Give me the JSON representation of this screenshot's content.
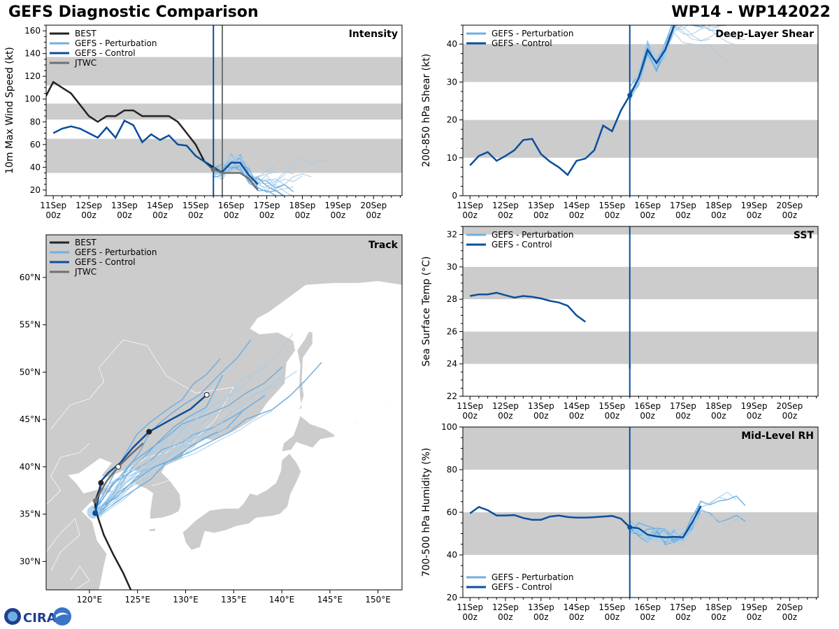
{
  "title_left": "GEFS Diagnostic Comparison",
  "title_right": "WP14 - WP142022",
  "logo_text": "CIRA",
  "colors": {
    "best": "#222222",
    "pert": "#6fafe0",
    "pert_thin": "#a8cde8",
    "control": "#0b4f9c",
    "jtwc": "#707070",
    "band": "#cccccc",
    "land": "#cccccc"
  },
  "time_ticks": [
    {
      "day": "11Sep",
      "hour": "00z"
    },
    {
      "day": "12Sep",
      "hour": "00z"
    },
    {
      "day": "13Sep",
      "hour": "00z"
    },
    {
      "day": "14Sep",
      "hour": "00z"
    },
    {
      "day": "15Sep",
      "hour": "00z"
    },
    {
      "day": "16Sep",
      "hour": "00z"
    },
    {
      "day": "17Sep",
      "hour": "00z"
    },
    {
      "day": "18Sep",
      "hour": "00z"
    },
    {
      "day": "19Sep",
      "hour": "00z"
    },
    {
      "day": "20Sep",
      "hour": "00z"
    }
  ],
  "legends": {
    "intensity": [
      "BEST",
      "GEFS - Perturbation",
      "GEFS - Control",
      "JTWC"
    ],
    "track": [
      "BEST",
      "GEFS - Perturbation",
      "GEFS - Control",
      "JTWC"
    ],
    "env": [
      "GEFS - Perturbation",
      "GEFS - Control"
    ]
  },
  "chart_data": [
    {
      "id": "intensity",
      "type": "line",
      "title": "Intensity",
      "ylabel": "10m Max Wind Speed (kt)",
      "xlim": [
        -0.2,
        9.8
      ],
      "ylim": [
        15,
        165
      ],
      "yticks": [
        20,
        40,
        60,
        80,
        100,
        120,
        140,
        160
      ],
      "bands": [
        [
          35,
          65
        ],
        [
          82,
          96
        ],
        [
          112,
          137
        ]
      ],
      "init_time": 4.5,
      "jtwc_time": 4.75,
      "series": [
        {
          "name": "BEST",
          "x": [
            -0.25,
            0,
            0.25,
            0.5,
            0.75,
            1,
            1.25,
            1.5,
            1.75,
            2,
            2.25,
            2.5,
            2.75,
            3,
            3.25,
            3.5,
            3.75,
            4,
            4.25,
            4.5,
            4.75
          ],
          "y": [
            100,
            115,
            110,
            105,
            95,
            85,
            80,
            85,
            85,
            90,
            90,
            85,
            85,
            85,
            85,
            80,
            70,
            60,
            45,
            40,
            35
          ]
        },
        {
          "name": "GEFS - Control",
          "x": [
            0,
            0.25,
            0.5,
            0.75,
            1,
            1.25,
            1.5,
            1.75,
            2,
            2.25,
            2.5,
            2.75,
            3,
            3.25,
            3.5,
            3.75,
            4,
            4.25,
            4.5,
            4.75,
            5,
            5.25,
            5.5,
            5.75
          ],
          "y": [
            70,
            74,
            76,
            74,
            70,
            66,
            75,
            66,
            81,
            77,
            62,
            69,
            64,
            68,
            60,
            59,
            50,
            45,
            38,
            36,
            44,
            44,
            33,
            25
          ]
        },
        {
          "name": "JTWC",
          "x": [
            4.5,
            4.75,
            5,
            5.25,
            5.5,
            5.75
          ],
          "y": [
            38,
            35,
            35,
            35,
            30,
            20
          ]
        }
      ]
    },
    {
      "id": "shear",
      "type": "line",
      "title": "Deep-Layer Shear",
      "ylabel": "200-850 hPa Shear (kt)",
      "xlim": [
        -0.2,
        9.8
      ],
      "ylim": [
        0,
        45
      ],
      "yticks": [
        0,
        10,
        20,
        30,
        40
      ],
      "bands": [
        [
          10,
          20
        ],
        [
          30,
          40
        ]
      ],
      "init_time": 4.5,
      "series": [
        {
          "name": "GEFS - Control",
          "x": [
            0,
            0.25,
            0.5,
            0.75,
            1,
            1.25,
            1.5,
            1.75,
            2,
            2.25,
            2.5,
            2.75,
            3,
            3.25,
            3.5,
            3.75,
            4,
            4.25,
            4.5,
            4.75,
            5,
            5.25,
            5.5,
            5.75
          ],
          "y": [
            8,
            10.5,
            11.5,
            9.2,
            10.5,
            12,
            14.7,
            15,
            11,
            9,
            7.5,
            5.5,
            9.2,
            9.8,
            12,
            18.5,
            17,
            22.5,
            26.5,
            31,
            38.5,
            35,
            38.5,
            45
          ]
        }
      ]
    },
    {
      "id": "sst",
      "type": "line",
      "title": "SST",
      "ylabel": "Sea Surface Temp (°C)",
      "xlim": [
        -0.2,
        9.8
      ],
      "ylim": [
        22,
        32.5
      ],
      "yticks": [
        22,
        24,
        26,
        28,
        30,
        32
      ],
      "bands": [
        [
          24,
          26
        ],
        [
          28,
          30
        ],
        [
          32,
          34
        ]
      ],
      "init_time": 4.5,
      "series": [
        {
          "name": "GEFS - Control",
          "x": [
            0,
            0.25,
            0.5,
            0.75,
            1,
            1.25,
            1.5,
            1.75,
            2,
            2.25,
            2.5,
            2.75,
            3,
            3.25
          ],
          "y": [
            28.2,
            28.3,
            28.3,
            28.4,
            28.25,
            28.1,
            28.2,
            28.15,
            28.05,
            27.9,
            27.8,
            27.6,
            27.0,
            26.6
          ]
        }
      ]
    },
    {
      "id": "rh",
      "type": "line",
      "title": "Mid-Level RH",
      "ylabel": "700-500 hPa Humidity (%)",
      "xlim": [
        -0.2,
        9.8
      ],
      "ylim": [
        20,
        100
      ],
      "yticks": [
        20,
        40,
        60,
        80,
        100
      ],
      "bands": [
        [
          40,
          60
        ],
        [
          80,
          100
        ]
      ],
      "init_time": 4.5,
      "series": [
        {
          "name": "GEFS - Control",
          "x": [
            0,
            0.25,
            0.5,
            0.75,
            1,
            1.25,
            1.5,
            1.75,
            2,
            2.25,
            2.5,
            2.75,
            3,
            3.25,
            3.5,
            3.75,
            4,
            4.25,
            4.5,
            4.75,
            5,
            5.25,
            5.5,
            5.75,
            6,
            6.25,
            6.5
          ],
          "y": [
            59.5,
            62.5,
            61,
            58.5,
            58.5,
            58.7,
            57.3,
            56.5,
            56.5,
            58,
            58.5,
            57.8,
            57.5,
            57.5,
            57.7,
            58,
            58.3,
            57,
            53,
            52.5,
            49.5,
            48.7,
            48.3,
            48.5,
            48.3,
            55,
            63
          ]
        }
      ]
    },
    {
      "id": "track",
      "type": "scatter",
      "title": "Track",
      "xlim": [
        115.5,
        152.5
      ],
      "ylim": [
        27,
        64.5
      ],
      "xticks": [
        "120°E",
        "125°E",
        "130°E",
        "135°E",
        "140°E",
        "145°E",
        "150°E"
      ],
      "yticks": [
        "30°N",
        "35°N",
        "40°N",
        "45°N",
        "50°N",
        "55°N",
        "60°N"
      ],
      "series": [
        {
          "name": "BEST",
          "lon": [
            124.3,
            123.5,
            122.5,
            121.5,
            120.9,
            120.6,
            120.6,
            121.0,
            121.2
          ],
          "lat": [
            27.0,
            28.8,
            30.7,
            32.8,
            34.6,
            35.8,
            36.4,
            37.5,
            38.3
          ]
        },
        {
          "name": "GEFS - Control",
          "lon": [
            120.6,
            120.9,
            121.3,
            122.0,
            123.2,
            124.5,
            126.2,
            128.5,
            130.5,
            132.2
          ],
          "lat": [
            35.1,
            36.6,
            38.6,
            39.4,
            40.4,
            42.0,
            43.7,
            45.0,
            46.1,
            47.6
          ]
        },
        {
          "name": "JTWC",
          "lon": [
            120.6,
            121.8,
            123.0,
            124.3,
            125.6
          ],
          "lat": [
            36.4,
            38.5,
            40.0,
            41.3,
            42.5
          ]
        }
      ]
    }
  ]
}
